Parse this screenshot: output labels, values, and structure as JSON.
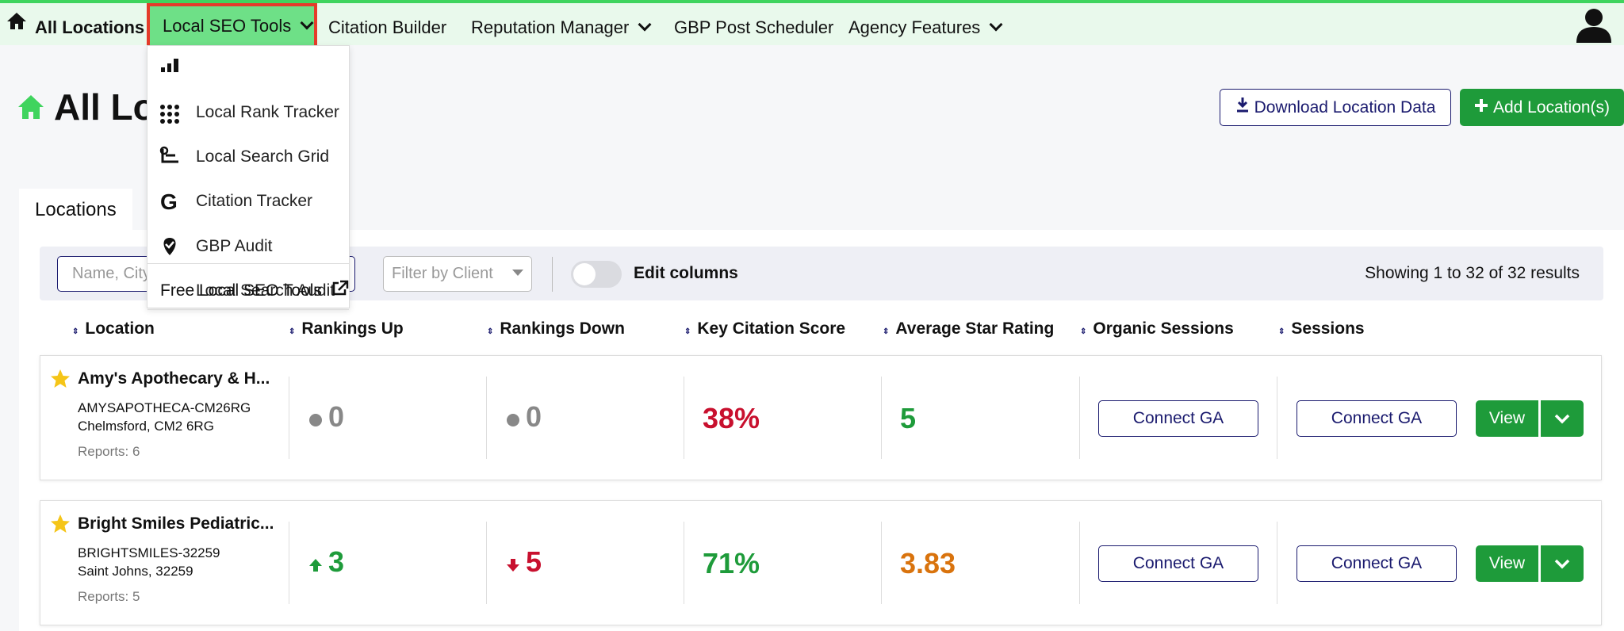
{
  "nav": {
    "home": "All Locations",
    "items": [
      "Local SEO Tools",
      "Citation Builder",
      "Reputation Manager",
      "GBP Post Scheduler",
      "Agency Features"
    ]
  },
  "dropdown": {
    "items": [
      "Local Rank Tracker",
      "Local Search Grid",
      "Citation Tracker",
      "GBP Audit",
      "Local Search Audit"
    ],
    "footer": "Free Local SEO Tools"
  },
  "page": {
    "title": "All Locations",
    "download": "Download Location Data",
    "add": "Add Location(s)"
  },
  "tab": "Locations",
  "filters": {
    "search_placeholder": "Name, City",
    "client_placeholder": "Filter by Client",
    "edit_columns": "Edit columns",
    "showing": "Showing 1 to 32 of 32 results"
  },
  "table": {
    "columns": [
      "Location",
      "Rankings Up",
      "Rankings Down",
      "Key Citation Score",
      "Average Star Rating",
      "Organic Sessions",
      "Sessions"
    ],
    "rows": [
      {
        "name": "Amy's Apothecary & H...",
        "code": "AMYSAPOTHECA-CM26RG",
        "address": "Chelmsford, CM2 6RG",
        "reports": "Reports: 6",
        "rankings_up": "0",
        "rankings_down": "0",
        "citation_score": "38%",
        "star_rating": "5",
        "organic": "Connect GA",
        "sessions": "Connect GA",
        "view": "View"
      },
      {
        "name": "Bright Smiles Pediatric...",
        "code": "BRIGHTSMILES-32259",
        "address": "Saint Johns, 32259",
        "reports": "Reports: 5",
        "rankings_up": "3",
        "rankings_down": "5",
        "citation_score": "71%",
        "star_rating": "3.83",
        "organic": "Connect GA",
        "sessions": "Connect GA",
        "view": "View"
      }
    ]
  }
}
